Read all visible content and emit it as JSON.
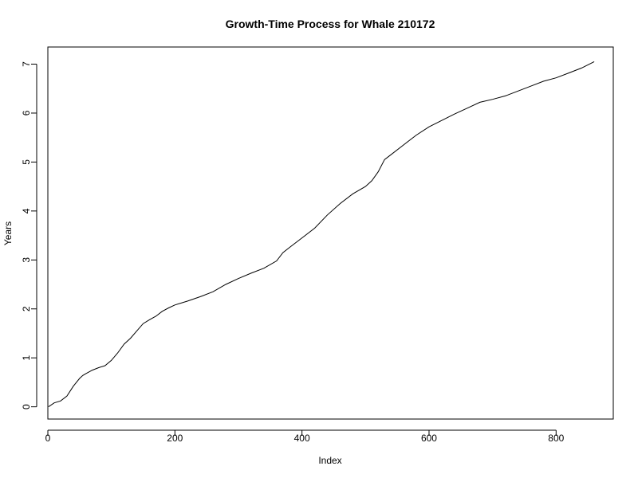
{
  "chart_data": {
    "type": "line",
    "title": "Growth-Time Process for Whale 210172",
    "xlabel": "Index",
    "ylabel": "Years",
    "xlim": [
      0,
      890
    ],
    "ylim": [
      -0.25,
      7.35
    ],
    "xticks": [
      0,
      200,
      400,
      600,
      800
    ],
    "yticks": [
      0,
      1,
      2,
      3,
      4,
      5,
      6,
      7
    ],
    "grid": false,
    "legend": "none",
    "line_color": "#000000",
    "series": [
      {
        "x": [
          1,
          10,
          20,
          30,
          40,
          45,
          50,
          55,
          60,
          70,
          80,
          90,
          100,
          110,
          120,
          130,
          140,
          150,
          160,
          170,
          180,
          190,
          200,
          220,
          240,
          260,
          280,
          300,
          320,
          340,
          360,
          370,
          380,
          400,
          420,
          440,
          460,
          480,
          500,
          510,
          520,
          530,
          540,
          560,
          580,
          600,
          620,
          640,
          660,
          680,
          700,
          720,
          740,
          760,
          780,
          800,
          820,
          840,
          860
        ],
        "values": [
          0.0,
          0.08,
          0.12,
          0.22,
          0.42,
          0.5,
          0.58,
          0.64,
          0.68,
          0.75,
          0.8,
          0.84,
          0.95,
          1.1,
          1.28,
          1.4,
          1.55,
          1.7,
          1.78,
          1.85,
          1.95,
          2.02,
          2.08,
          2.16,
          2.25,
          2.35,
          2.5,
          2.62,
          2.73,
          2.83,
          2.98,
          3.15,
          3.25,
          3.45,
          3.65,
          3.92,
          4.15,
          4.35,
          4.5,
          4.62,
          4.8,
          5.05,
          5.15,
          5.35,
          5.55,
          5.72,
          5.85,
          5.98,
          6.1,
          6.22,
          6.28,
          6.35,
          6.45,
          6.55,
          6.65,
          6.72,
          6.82,
          6.92,
          7.05
        ]
      }
    ]
  }
}
